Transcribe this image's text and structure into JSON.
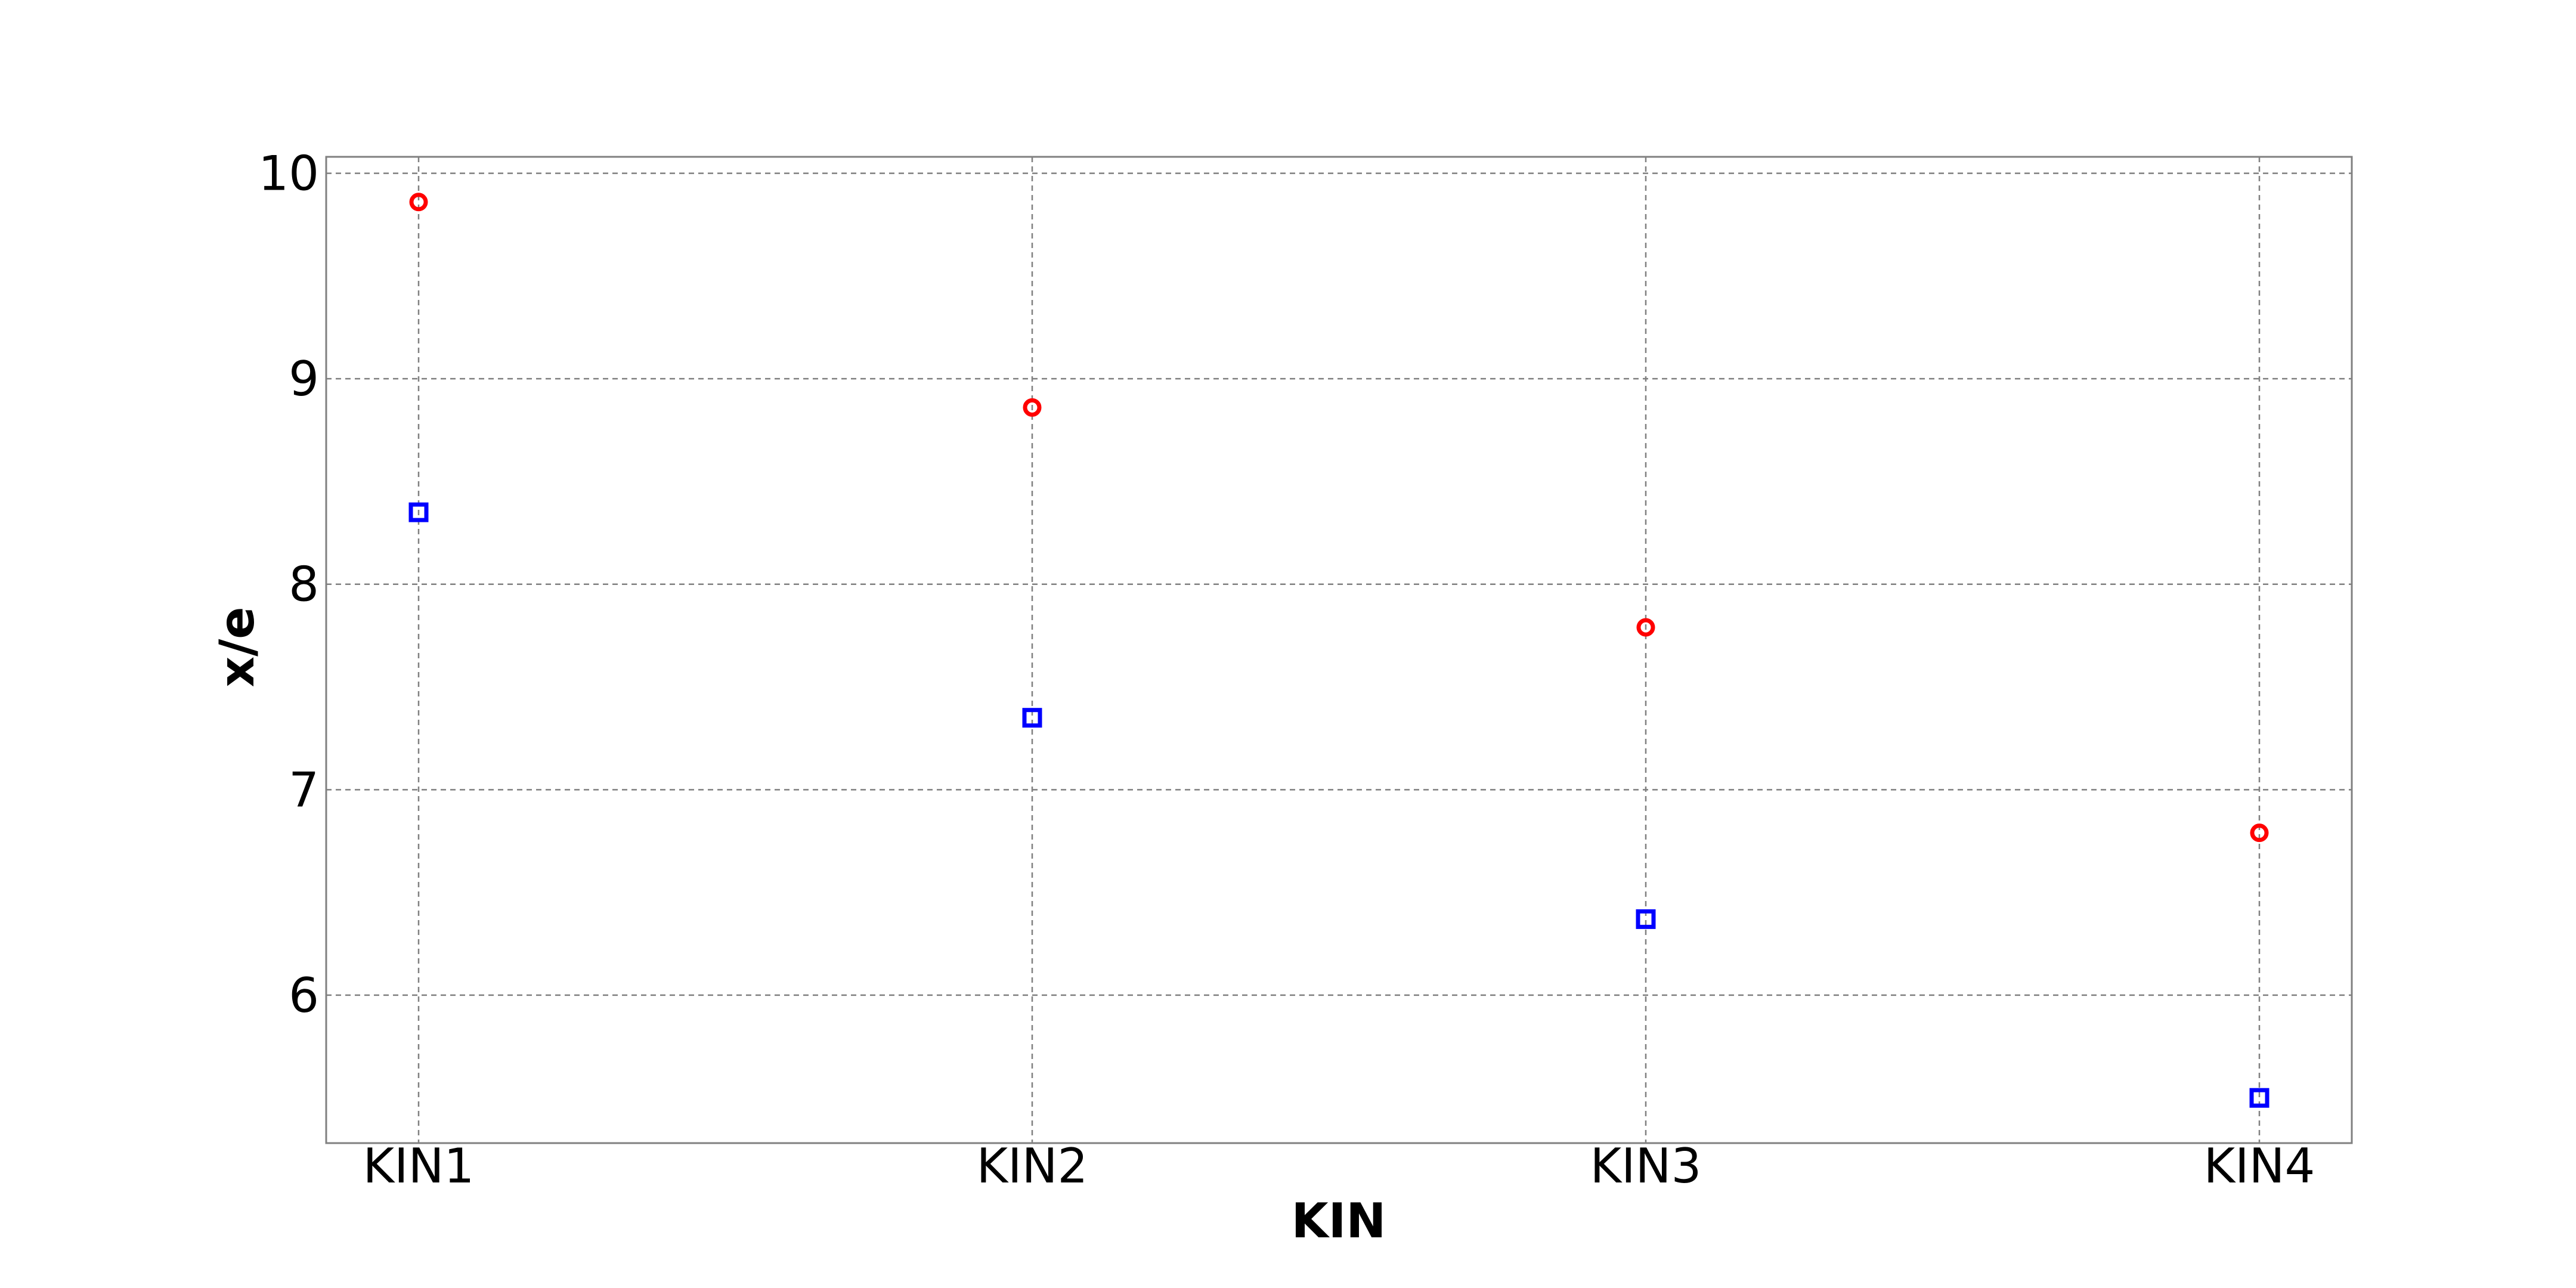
{
  "chart_data": {
    "type": "scatter",
    "title": "",
    "xlabel": "KIN",
    "ylabel": "x/e",
    "categories": [
      "KIN1",
      "KIN2",
      "KIN3",
      "KIN4"
    ],
    "ylim": [
      5.28,
      10.08
    ],
    "yticks": [
      6,
      7,
      8,
      9,
      10
    ],
    "grid": true,
    "legend": "none",
    "series": [
      {
        "marker": "circle",
        "color": "#ff0000",
        "values": [
          9.86,
          8.86,
          7.79,
          6.79
        ]
      },
      {
        "marker": "square",
        "color": "#0000ff",
        "values": [
          8.35,
          7.35,
          6.37,
          5.5
        ]
      }
    ]
  }
}
